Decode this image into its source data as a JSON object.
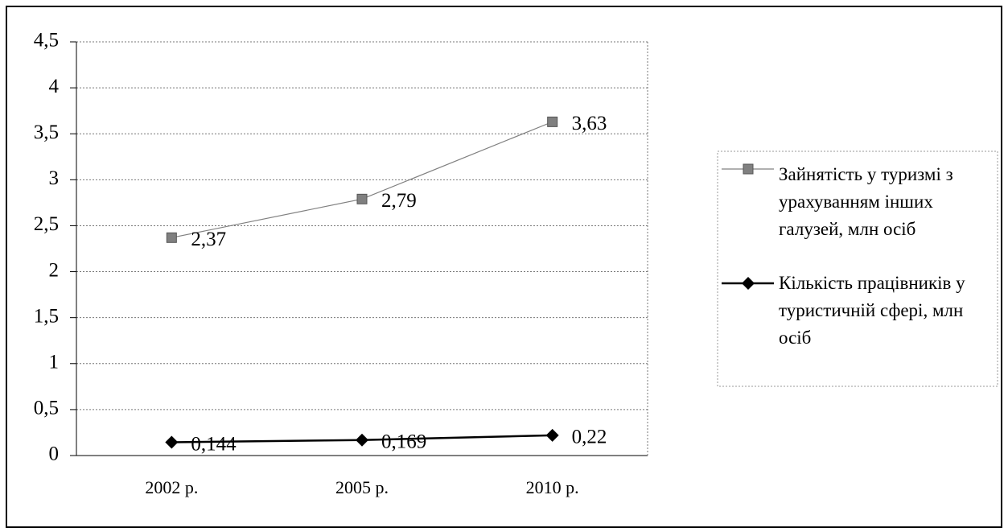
{
  "chart_data": {
    "type": "line",
    "categories": [
      "2002 р.",
      "2005 р.",
      "2010 р."
    ],
    "series": [
      {
        "name": "Зайнятість у туризмі з урахуванням інших галузей, млн осіб",
        "color": "#808080",
        "marker": "square",
        "values": [
          2.37,
          2.79,
          3.63
        ],
        "value_labels": [
          "2,37",
          "2,79",
          "3,63"
        ]
      },
      {
        "name": "Кількість працівників у туристичній сфері, млн осіб",
        "color": "#000000",
        "marker": "diamond",
        "values": [
          0.144,
          0.169,
          0.22
        ],
        "value_labels": [
          "0,144",
          "0,169",
          "0,22"
        ]
      }
    ],
    "ylim": [
      0,
      4.5
    ],
    "yticks": [
      0,
      {
        "value": 0.5,
        "label": "0,5"
      },
      1,
      {
        "value": 1.5,
        "label": "1,5"
      },
      2,
      {
        "value": 2.5,
        "label": "2,5"
      },
      3,
      {
        "value": 3.5,
        "label": "3,5"
      },
      4,
      {
        "value": 4.5,
        "label": "4,5"
      }
    ],
    "grid": true,
    "legend": "right"
  }
}
